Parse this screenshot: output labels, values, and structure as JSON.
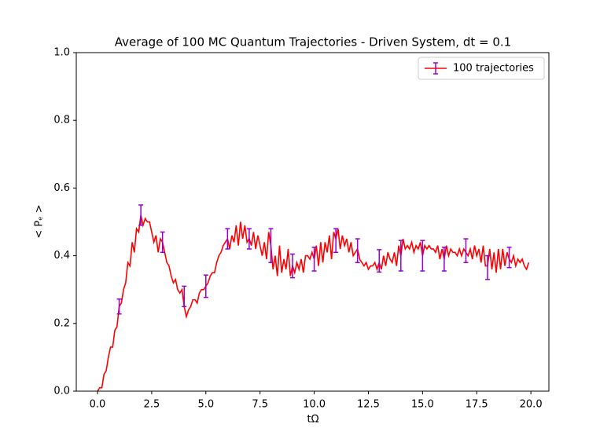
{
  "chart_data": {
    "type": "line",
    "title": "Average of 100 MC Quantum Trajectories - Driven System, dt = 0.1",
    "xlabel": "tΩ",
    "ylabel": "< Pₑ >",
    "xlim": [
      -0.98,
      20.83
    ],
    "ylim": [
      0,
      1
    ],
    "xticks": [
      {
        "value": 0,
        "label": "0.0"
      },
      2.5,
      {
        "value": 5,
        "label": "5.0"
      },
      7.5,
      {
        "value": 10,
        "label": "10.0"
      },
      12.5,
      {
        "value": 15,
        "label": "15.0"
      },
      17.5,
      {
        "value": 20,
        "label": "20.0"
      }
    ],
    "yticks": [
      {
        "value": 0,
        "label": "0.0"
      },
      0.2,
      0.4,
      0.6,
      0.8,
      {
        "value": 1,
        "label": "1.0"
      }
    ],
    "grid": false,
    "legend_loc": "upper right",
    "x": [
      0,
      0.1,
      0.2,
      0.3,
      0.4,
      0.5,
      0.6,
      0.7,
      0.8,
      0.9,
      1,
      1.1,
      1.2,
      1.3,
      1.4,
      1.5,
      1.6,
      1.7,
      1.8,
      1.9,
      2,
      2.1,
      2.2,
      2.3,
      2.4,
      2.5,
      2.6,
      2.7,
      2.8,
      2.9,
      3,
      3.1,
      3.2,
      3.3,
      3.4,
      3.5,
      3.6,
      3.7,
      3.8,
      3.9,
      4,
      4.1,
      4.2,
      4.3,
      4.4,
      4.5,
      4.6,
      4.7,
      4.8,
      4.9,
      5,
      5.1,
      5.2,
      5.3,
      5.4,
      5.5,
      5.6,
      5.7,
      5.8,
      5.9,
      6,
      6.1,
      6.2,
      6.3,
      6.4,
      6.5,
      6.6,
      6.7,
      6.8,
      6.9,
      7,
      7.1,
      7.2,
      7.3,
      7.4,
      7.5,
      7.6,
      7.7,
      7.8,
      7.9,
      8,
      8.1,
      8.2,
      8.3,
      8.4,
      8.5,
      8.6,
      8.7,
      8.8,
      8.9,
      9,
      9.1,
      9.2,
      9.3,
      9.4,
      9.5,
      9.6,
      9.7,
      9.8,
      9.9,
      10,
      10.1,
      10.2,
      10.3,
      10.4,
      10.5,
      10.6,
      10.7,
      10.8,
      10.9,
      11,
      11.1,
      11.2,
      11.3,
      11.4,
      11.5,
      11.6,
      11.7,
      11.8,
      11.9,
      12,
      12.1,
      12.2,
      12.3,
      12.4,
      12.5,
      12.6,
      12.7,
      12.8,
      12.9,
      13,
      13.1,
      13.2,
      13.3,
      13.4,
      13.5,
      13.6,
      13.7,
      13.8,
      13.9,
      14,
      14.1,
      14.2,
      14.3,
      14.4,
      14.5,
      14.6,
      14.7,
      14.8,
      14.9,
      15,
      15.1,
      15.2,
      15.3,
      15.4,
      15.5,
      15.6,
      15.7,
      15.8,
      15.9,
      16,
      16.1,
      16.2,
      16.3,
      16.4,
      16.5,
      16.6,
      16.7,
      16.8,
      16.9,
      17,
      17.1,
      17.2,
      17.3,
      17.4,
      17.5,
      17.6,
      17.7,
      17.8,
      17.9,
      18,
      18.1,
      18.2,
      18.3,
      18.4,
      18.5,
      18.6,
      18.7,
      18.8,
      18.9,
      19,
      19.1,
      19.2,
      19.3,
      19.4,
      19.5,
      19.6,
      19.7,
      19.8,
      19.9
    ],
    "series": [
      {
        "name": "100 trajectories",
        "color": "#ff0000",
        "values": [
          0,
          0.01,
          0.01,
          0.05,
          0.06,
          0.1,
          0.13,
          0.13,
          0.18,
          0.19,
          0.25,
          0.26,
          0.3,
          0.32,
          0.38,
          0.37,
          0.44,
          0.41,
          0.48,
          0.47,
          0.52,
          0.49,
          0.51,
          0.5,
          0.5,
          0.47,
          0.44,
          0.46,
          0.41,
          0.45,
          0.44,
          0.41,
          0.38,
          0.37,
          0.34,
          0.32,
          0.33,
          0.3,
          0.29,
          0.3,
          0.25,
          0.22,
          0.24,
          0.25,
          0.27,
          0.27,
          0.26,
          0.29,
          0.3,
          0.3,
          0.31,
          0.32,
          0.34,
          0.35,
          0.35,
          0.38,
          0.4,
          0.41,
          0.43,
          0.44,
          0.45,
          0.42,
          0.46,
          0.44,
          0.49,
          0.43,
          0.5,
          0.45,
          0.49,
          0.44,
          0.45,
          0.43,
          0.47,
          0.42,
          0.46,
          0.43,
          0.4,
          0.44,
          0.39,
          0.47,
          0.43,
          0.36,
          0.4,
          0.34,
          0.43,
          0.35,
          0.39,
          0.36,
          0.42,
          0.34,
          0.37,
          0.35,
          0.38,
          0.36,
          0.39,
          0.35,
          0.4,
          0.4,
          0.39,
          0.41,
          0.39,
          0.43,
          0.37,
          0.44,
          0.38,
          0.44,
          0.41,
          0.46,
          0.39,
          0.47,
          0.45,
          0.48,
          0.42,
          0.46,
          0.43,
          0.45,
          0.41,
          0.44,
          0.4,
          0.41,
          0.42,
          0.39,
          0.38,
          0.37,
          0.38,
          0.36,
          0.37,
          0.37,
          0.38,
          0.36,
          0.38,
          0.36,
          0.4,
          0.37,
          0.41,
          0.39,
          0.38,
          0.41,
          0.37,
          0.43,
          0.4,
          0.45,
          0.42,
          0.43,
          0.42,
          0.44,
          0.41,
          0.43,
          0.42,
          0.44,
          0.4,
          0.43,
          0.42,
          0.43,
          0.42,
          0.42,
          0.41,
          0.43,
          0.39,
          0.42,
          0.39,
          0.43,
          0.4,
          0.42,
          0.41,
          0.41,
          0.4,
          0.42,
          0.4,
          0.42,
          0.41,
          0.4,
          0.42,
          0.39,
          0.43,
          0.4,
          0.42,
          0.38,
          0.43,
          0.37,
          0.37,
          0.42,
          0.36,
          0.41,
          0.35,
          0.42,
          0.36,
          0.42,
          0.37,
          0.41,
          0.39,
          0.38,
          0.4,
          0.37,
          0.39,
          0.38,
          0.39,
          0.37,
          0.36,
          0.38
        ]
      }
    ],
    "errorbars": {
      "color": "#9400d3",
      "x": [
        1,
        2,
        3,
        4,
        5,
        6,
        7,
        8,
        9,
        10,
        11,
        12,
        13,
        14,
        15,
        16,
        17,
        18,
        19
      ],
      "values": [
        0.25,
        0.52,
        0.44,
        0.28,
        0.31,
        0.45,
        0.45,
        0.43,
        0.37,
        0.39,
        0.445,
        0.415,
        0.385,
        0.4,
        0.4,
        0.39,
        0.415,
        0.365,
        0.395
      ],
      "errors": [
        0.022,
        0.03,
        0.03,
        0.03,
        0.033,
        0.03,
        0.03,
        0.05,
        0.035,
        0.035,
        0.035,
        0.035,
        0.033,
        0.045,
        0.045,
        0.035,
        0.035,
        0.035,
        0.03
      ]
    }
  }
}
